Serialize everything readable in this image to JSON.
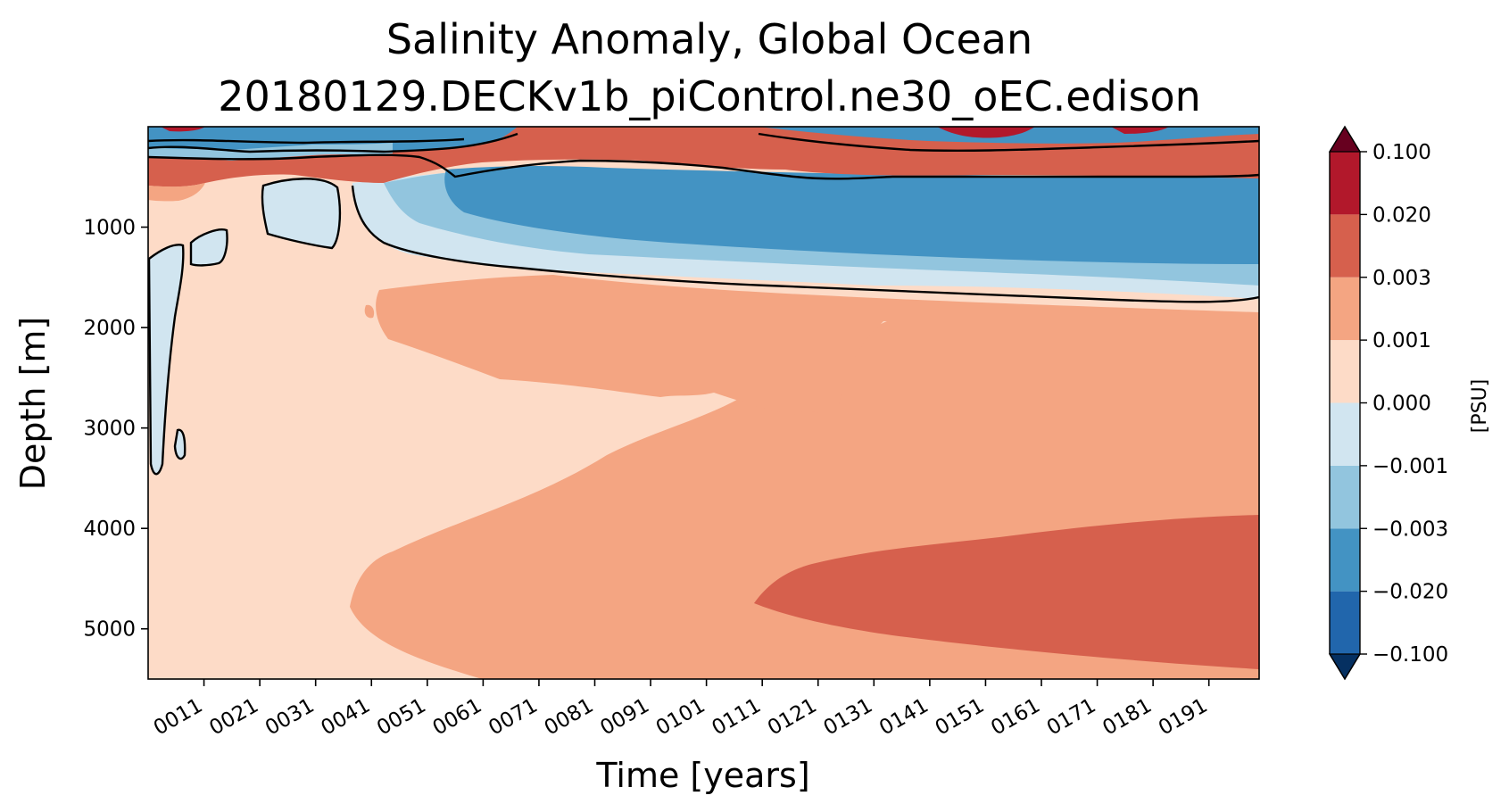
{
  "chart_data": {
    "type": "heatmap",
    "title": "Salinity Anomaly, Global Ocean",
    "subtitle": "20180129.DECKv1b_piControl.ne30_oEC.edison",
    "xlabel": "Time [years]",
    "ylabel": "Depth [m]",
    "xlim": [
      1,
      200
    ],
    "ylim": [
      0,
      5500
    ],
    "y_inverted": true,
    "x_ticks": [
      {
        "value": 11,
        "label": "0011"
      },
      {
        "value": 21,
        "label": "0021"
      },
      {
        "value": 31,
        "label": "0031"
      },
      {
        "value": 41,
        "label": "0041"
      },
      {
        "value": 51,
        "label": "0051"
      },
      {
        "value": 61,
        "label": "0061"
      },
      {
        "value": 71,
        "label": "0071"
      },
      {
        "value": 81,
        "label": "0081"
      },
      {
        "value": 91,
        "label": "0091"
      },
      {
        "value": 101,
        "label": "0101"
      },
      {
        "value": 111,
        "label": "0111"
      },
      {
        "value": 121,
        "label": "0121"
      },
      {
        "value": 131,
        "label": "0131"
      },
      {
        "value": 141,
        "label": "0141"
      },
      {
        "value": 151,
        "label": "0151"
      },
      {
        "value": 161,
        "label": "0161"
      },
      {
        "value": 171,
        "label": "0171"
      },
      {
        "value": 181,
        "label": "0181"
      },
      {
        "value": 191,
        "label": "0191"
      }
    ],
    "y_ticks": [
      {
        "value": 1000,
        "label": "1000"
      },
      {
        "value": 2000,
        "label": "2000"
      },
      {
        "value": 3000,
        "label": "3000"
      },
      {
        "value": 4000,
        "label": "4000"
      },
      {
        "value": 5000,
        "label": "5000"
      }
    ],
    "colorbar": {
      "label": "[PSU]",
      "levels": [
        {
          "value": -0.1,
          "label": "−0.100"
        },
        {
          "value": -0.02,
          "label": "−0.020"
        },
        {
          "value": -0.003,
          "label": "−0.003"
        },
        {
          "value": -0.001,
          "label": "−0.001"
        },
        {
          "value": 0.0,
          "label": "0.000"
        },
        {
          "value": 0.001,
          "label": "0.001"
        },
        {
          "value": 0.003,
          "label": "0.003"
        },
        {
          "value": 0.02,
          "label": "0.020"
        },
        {
          "value": 0.1,
          "label": "0.100"
        }
      ],
      "colors": [
        "#2166ac",
        "#4393c3",
        "#92c5de",
        "#d1e5f0",
        "#fddbc7",
        "#f4a582",
        "#d6604d",
        "#b2182b"
      ],
      "extend_low_color": "#053061",
      "extend_high_color": "#67001f"
    },
    "background_class": "0.000 to 0.001",
    "regions": [
      {
        "name": "near-surface-variable",
        "class": "mixed",
        "t": [
          1,
          200
        ],
        "depth": [
          0,
          200
        ]
      },
      {
        "name": "upper-positive",
        "class": "0.003 to 0.020",
        "t": [
          1,
          200
        ],
        "depth": [
          200,
          550
        ]
      },
      {
        "name": "intermediate-negative",
        "class": "-0.020 to -0.003",
        "t": [
          55,
          200
        ],
        "depth": [
          450,
          1400
        ]
      },
      {
        "name": "mid-depth-positive",
        "class": "0.001 to 0.003",
        "t": [
          40,
          200
        ],
        "depth": [
          1550,
          3400
        ]
      },
      {
        "name": "deep-positive",
        "class": "0.001 to 0.003",
        "t": [
          36,
          200
        ],
        "depth": [
          3800,
          5500
        ]
      },
      {
        "name": "bottom-positive",
        "class": "0.003 to 0.020",
        "t": [
          110,
          200
        ],
        "depth": [
          3850,
          5450
        ]
      }
    ],
    "zero_contour": true,
    "grid": false
  }
}
